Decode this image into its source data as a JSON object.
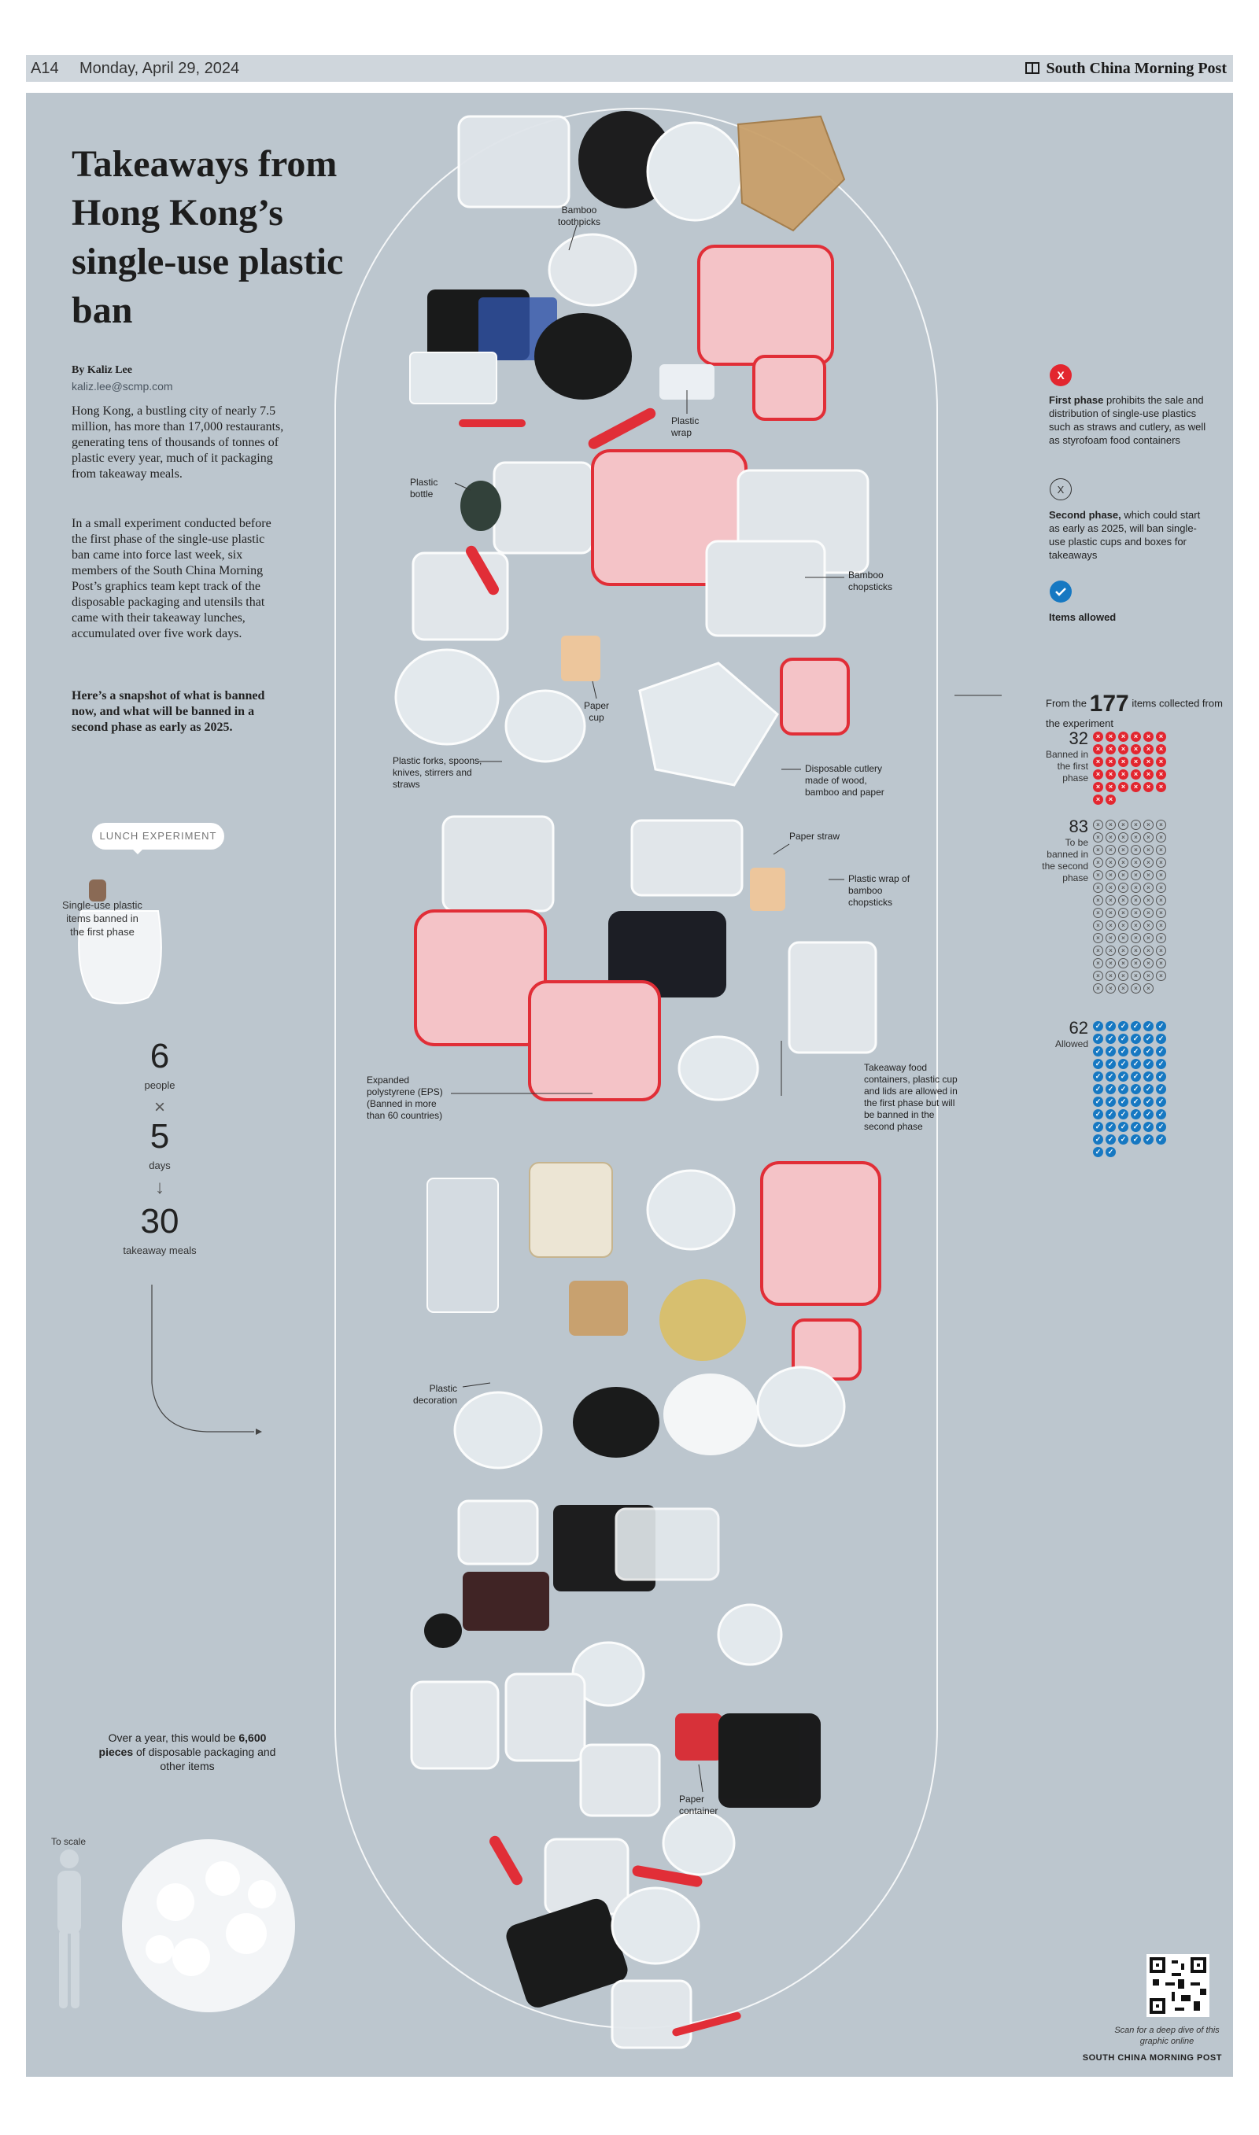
{
  "header": {
    "page": "A14",
    "date": "Monday, April 29, 2024",
    "brand": "South China Morning Post"
  },
  "article": {
    "headline": "Takeaways from Hong Kong’s single-use plastic ban",
    "byline": "By Kaliz Lee",
    "email": "kaliz.lee@scmp.com",
    "para1": "Hong Kong, a bustling city of nearly 7.5 million, has more than 17,000 restaurants, generating tens of thousands of tonnes of plastic every year, much of it packaging from takeaway meals.",
    "para2": "In a small experiment conducted before the first phase of the single-use plastic ban came into force last week, six members of the South China Morning Post’s graphics team kept track of the disposable packaging and utensils that came with their takeaway lunches, accumulated over five work days.",
    "para3": "Here’s a snapshot of what is banned now, and what will be banned in a second phase as early as 2025."
  },
  "experiment": {
    "bubble": "LUNCH EXPERIMENT",
    "bag_label": "Single-use plastic items banned in the first phase",
    "people_num": "6",
    "people_label": "people",
    "times": "×",
    "days_num": "5",
    "days_label": "days",
    "arrow": "↓",
    "meals_num": "30",
    "meals_label": "takeaway meals"
  },
  "year": {
    "pre": "Over a year, this would be ",
    "strong": "6,600 pieces",
    "post": " of disposable packaging and other items",
    "to_scale": "To scale"
  },
  "legend": {
    "first_title": "First phase",
    "first_text": " prohibits the sale and distribution of single-use plastics such as straws and cutlery, as well as styrofoam food containers",
    "second_title": "Second phase,",
    "second_text": " which could start as early as 2025, will ban single-use plastic cups and boxes for takeaways",
    "allowed_title": "Items allowed"
  },
  "stats": {
    "intro_pre": "From the",
    "total": "177",
    "intro_post": "items collected from the experiment",
    "first_num": "32",
    "first_label": "Banned in the first phase",
    "first_count": 32,
    "second_num": "83",
    "second_label": "To be banned in the second phase",
    "second_count": 83,
    "allowed_num": "62",
    "allowed_label": "Allowed",
    "allowed_count": 62
  },
  "annotations": {
    "bamboo_toothpicks": "Bamboo toothpicks",
    "plastic_wrap": "Plastic wrap",
    "plastic_bottle": "Plastic bottle",
    "bamboo_chopsticks": "Bamboo chopsticks",
    "paper_cup": "Paper cup",
    "plastic_forks": "Plastic forks, spoons, knives, stirrers and straws",
    "disposable_cutlery": "Disposable cutlery made of wood, bamboo and paper",
    "paper_straw": "Paper straw",
    "plastic_wrap_chopsticks": "Plastic wrap of bamboo chopsticks",
    "eps": "Expanded polystyrene (EPS) (Banned in more than 60 countries)",
    "takeaway_containers": "Takeaway food containers, plastic cup and lids are allowed in the first phase but will be banned in the second phase",
    "plastic_decoration": "Plastic decoration",
    "paper_container": "Paper container"
  },
  "qr": {
    "caption": "Scan for a deep dive of this graphic online"
  },
  "footer": {
    "brand": "SOUTH CHINA MORNING POST"
  },
  "colors": {
    "panel": "#bcc6ce",
    "banned_first": "#e3262f",
    "allowed": "#1678c2",
    "eps_pink": "#f6b3b8"
  }
}
